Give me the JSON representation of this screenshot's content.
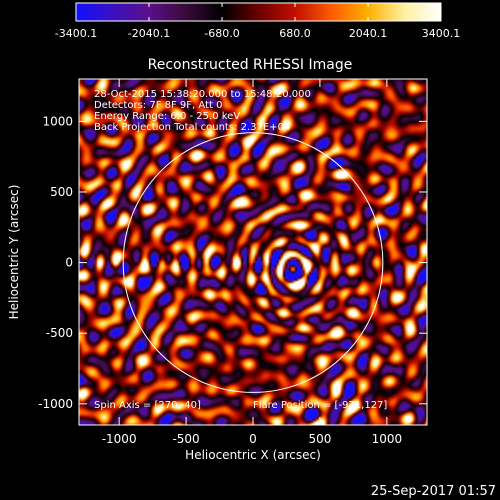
{
  "colorbar": {
    "ticks": [
      -3400.1,
      -2040.1,
      -680.0,
      680.0,
      2040.1,
      3400.1
    ],
    "tick_labels": [
      "-3400.1",
      "-2040.1",
      "-680.0",
      "680.0",
      "2040.1",
      "3400.1"
    ],
    "range": [
      -3400.1,
      3400.1
    ],
    "colormap": [
      "#1010ff",
      "#3a10c0",
      "#5a0f8a",
      "#3a0a3a",
      "#000000",
      "#6a0000",
      "#c01000",
      "#ff5a00",
      "#ffb000",
      "#fff0a0",
      "#ffffff"
    ]
  },
  "chart_data": {
    "type": "heatmap",
    "title": "Reconstructed RHESSI Image",
    "xlabel": "Heliocentric X (arcsec)",
    "ylabel": "Heliocentric Y (arcsec)",
    "xlim": [
      -1300,
      1300
    ],
    "ylim": [
      -1150,
      1300
    ],
    "x_ticks": [
      -1000,
      -500,
      0,
      500,
      1000
    ],
    "y_ticks": [
      -1000,
      -500,
      0,
      500,
      1000
    ],
    "x_tick_labels": [
      "-1000",
      "-500",
      "0",
      "500",
      "1000"
    ],
    "y_tick_labels": [
      "-1000",
      "-500",
      "0",
      "500",
      "1000"
    ],
    "solar_limb_radius_arcsec": 970,
    "source_center": {
      "x": 300,
      "y": -50
    },
    "annotations": [
      "28-Oct-2015 15:38:20.000 to 15:48:20.000",
      "Detectors: 7F 8F 9F, Att 0",
      "Energy Range: 6.0 - 25.0 keV",
      "Back Projection   Total counts: 2.37E+04"
    ],
    "spin_axis": "Spin Axis = [270,-40]",
    "flare_position": "Flare Position = [-971,127]"
  },
  "footer_timestamp": "25-Sep-2017 01:57"
}
